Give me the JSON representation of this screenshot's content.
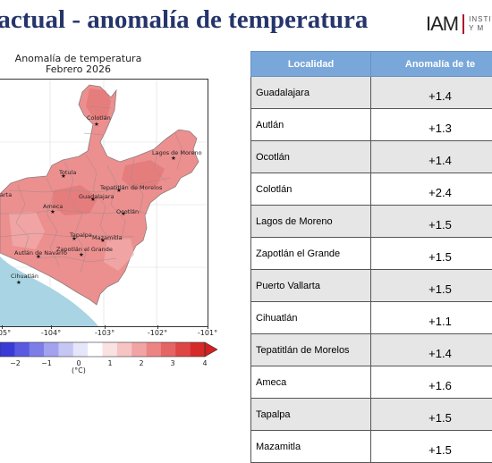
{
  "header": {
    "title": "n actual - anomalía de temperatura",
    "logo_text": "IAM",
    "logo_sub_1": "INSTITU",
    "logo_sub_2": "Y M"
  },
  "map": {
    "title_line1": "Anomalía de temperatura",
    "title_line2": "Febrero 2026",
    "longitude_labels": [
      "05°",
      "-104°",
      "-103°",
      "-102°",
      "-101°"
    ],
    "place_labels": [
      "Colotlán",
      "Lagos de Moreno",
      "Totula",
      "Tepatitlán de Morelos",
      "Guadalajara",
      "arta",
      "Ameca",
      "Ocotlán",
      "Tapalpa",
      "Mazamitla",
      "Autlán de Navarro",
      "Zapotlán el Grande",
      "Cihuatlán"
    ],
    "colorbar": {
      "ticks": [
        "−2",
        "−1",
        "0",
        "1",
        "2",
        "3",
        "4"
      ],
      "unit": "(°C)",
      "colors": [
        "#3a3ad6",
        "#5a5ae0",
        "#7d7de8",
        "#a2a2ef",
        "#c6c6f5",
        "#e6e6fb",
        "#ffffff",
        "#fbe2e2",
        "#f7c4c4",
        "#f2a4a4",
        "#ec8484",
        "#e56464",
        "#de4545",
        "#d62a2a"
      ],
      "arrow_color": "#d32020"
    }
  },
  "table": {
    "col_location": "Localidad",
    "col_anomaly": "Anomalía de te",
    "rows": [
      {
        "loc": "Guadalajara",
        "val": "+1.4"
      },
      {
        "loc": "Autlán",
        "val": "+1.3"
      },
      {
        "loc": "Ocotlán",
        "val": "+1.4"
      },
      {
        "loc": "Colotlán",
        "val": "+2.4"
      },
      {
        "loc": "Lagos de Moreno",
        "val": "+1.5"
      },
      {
        "loc": "Zapotlán el Grande",
        "val": "+1.5"
      },
      {
        "loc": "Puerto Vallarta",
        "val": "+1.5"
      },
      {
        "loc": "Cihuatlán",
        "val": "+1.1"
      },
      {
        "loc": "Tepatitlán de Morelos",
        "val": "+1.4"
      },
      {
        "loc": "Ameca",
        "val": "+1.6"
      },
      {
        "loc": "Tapalpa",
        "val": "+1.5"
      },
      {
        "loc": "Mazamitla",
        "val": "+1.5"
      }
    ]
  },
  "colors": {
    "title": "#25356b",
    "table_header": "#79a7d9",
    "ocean": "#a9d4e3",
    "land_anomaly": "#ec8f8f"
  }
}
